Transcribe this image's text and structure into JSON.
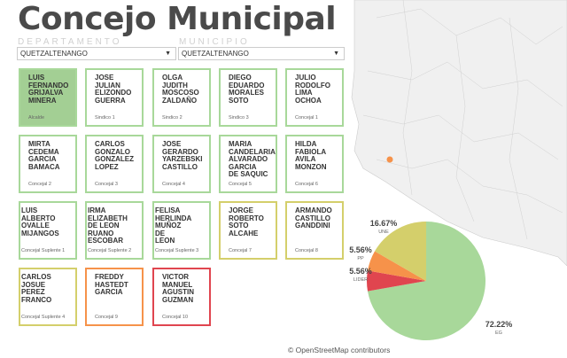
{
  "title": "Concejo Municipal",
  "filters": {
    "departamento_label": "DEPARTAMENTO",
    "departamento_value": "QUETZALTENANGO",
    "municipio_label": "MUNICIPIO",
    "municipio_value": "QUETZALTENANGO"
  },
  "members": [
    {
      "name": "LUIS FERNANDO GRIJALVA MINERA",
      "role": "Alcalde",
      "party": "EG"
    },
    {
      "name": "JOSE JULIAN ELIZONDO GUERRA",
      "role": "Sindico 1",
      "party": "EG"
    },
    {
      "name": "OLGA JUDITH MOSCOSO ZALDAÑO",
      "role": "Sindico 2",
      "party": "EG"
    },
    {
      "name": "DIEGO EDUARDO MORALES SOTO",
      "role": "Sindico 3",
      "party": "EG"
    },
    {
      "name": "JULIO RODOLFO LIMA OCHOA",
      "role": "Concejal 1",
      "party": "EG"
    },
    {
      "name": "MIRTA CEDEMA GARCIA BAMACA",
      "role": "Concejal 2",
      "party": "EG"
    },
    {
      "name": "CARLOS GONZALO GONZALEZ LOPEZ",
      "role": "Concejal 3",
      "party": "EG"
    },
    {
      "name": "JOSE GERARDO YARZEBSKI CASTILLO",
      "role": "Concejal 4",
      "party": "EG"
    },
    {
      "name": "MARIA CANDELARIA ALVARADO GARCIA DE SAQUIC",
      "role": "Concejal 5",
      "party": "EG"
    },
    {
      "name": "HILDA FABIOLA AVILA MONZON",
      "role": "Concejal 6",
      "party": "EG"
    },
    {
      "name": "LUIS ALBERTO OVALLE MIJANGOS",
      "role": "Concejal Suplente 1",
      "party": "EG"
    },
    {
      "name": "IRMA ELIZABETH DE LEON RUANO ESCOBAR",
      "role": "Concejal Suplente 2",
      "party": "EG"
    },
    {
      "name": "FELISA HERLINDA MUÑOZ DE LEON",
      "role": "Concejal Suplente 3",
      "party": "EG"
    },
    {
      "name": "JORGE ROBERTO SOTO ALCAHE",
      "role": "Concejal 7",
      "party": "UNE"
    },
    {
      "name": "ARMANDO CASTILLO GANDDINI",
      "role": "Concejal 8",
      "party": "UNE"
    },
    {
      "name": "CARLOS JOSUE PEREZ FRANCO",
      "role": "Concejal Suplente 4",
      "party": "UNE"
    },
    {
      "name": "FREDDY HASTEDT GARCIA",
      "role": "Concejal 9",
      "party": "PP"
    },
    {
      "name": "VICTOR MANUEL AGUSTIN GUZMAN",
      "role": "Concejal 10",
      "party": "LIDER"
    }
  ],
  "colors": {
    "EG": "#a8d89a",
    "UNE": "#d4cf6b",
    "PP": "#f6924a",
    "LIDER": "#e0454f",
    "EG_fill": "#a3cf94"
  },
  "map_credit": "© OpenStreetMap contributors",
  "chart_data": {
    "type": "pie",
    "slices": [
      {
        "label": "EG",
        "value": 72.22,
        "text": "72.22%"
      },
      {
        "label": "LIDER",
        "value": 5.56,
        "text": "5.56%"
      },
      {
        "label": "PP",
        "value": 5.56,
        "text": "5.56%"
      },
      {
        "label": "UNE",
        "value": 16.67,
        "text": "16.67%"
      }
    ]
  }
}
